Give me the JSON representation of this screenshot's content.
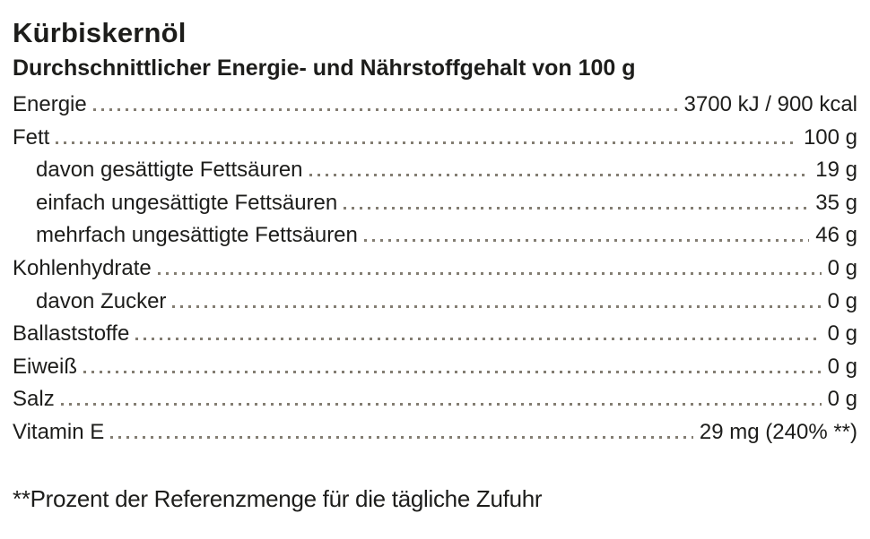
{
  "page": {
    "title": "Kürbiskernöl",
    "subtitle": "Durchschnittlicher Energie- und Nährstoffgehalt von 100 g",
    "footnote": "**Prozent der Referenzmenge für die tägliche Zufuhr"
  },
  "table": {
    "rows": [
      {
        "label": "Energie",
        "value": "3700 kJ / 900 kcal",
        "indent": false
      },
      {
        "label": "Fett",
        "value": "100 g",
        "indent": false
      },
      {
        "label": "davon gesättigte Fettsäuren",
        "value": "19 g",
        "indent": true
      },
      {
        "label": "einfach ungesättigte Fettsäuren",
        "value": "35 g",
        "indent": true
      },
      {
        "label": "mehrfach ungesättigte Fettsäuren",
        "value": "46 g",
        "indent": true
      },
      {
        "label": "Kohlenhydrate",
        "value": "0 g",
        "indent": false
      },
      {
        "label": "davon Zucker",
        "value": "0 g",
        "indent": true
      },
      {
        "label": "Ballaststoffe",
        "value": "0 g",
        "indent": false
      },
      {
        "label": "Eiweiß",
        "value": "0 g",
        "indent": false
      },
      {
        "label": "Salz",
        "value": "0 g",
        "indent": false
      },
      {
        "label": "Vitamin E",
        "value": "29 mg (240% **)",
        "indent": false
      }
    ]
  },
  "colors": {
    "text": "#1d1d1b",
    "leader_dots": "#837d72",
    "background": "#ffffff"
  }
}
